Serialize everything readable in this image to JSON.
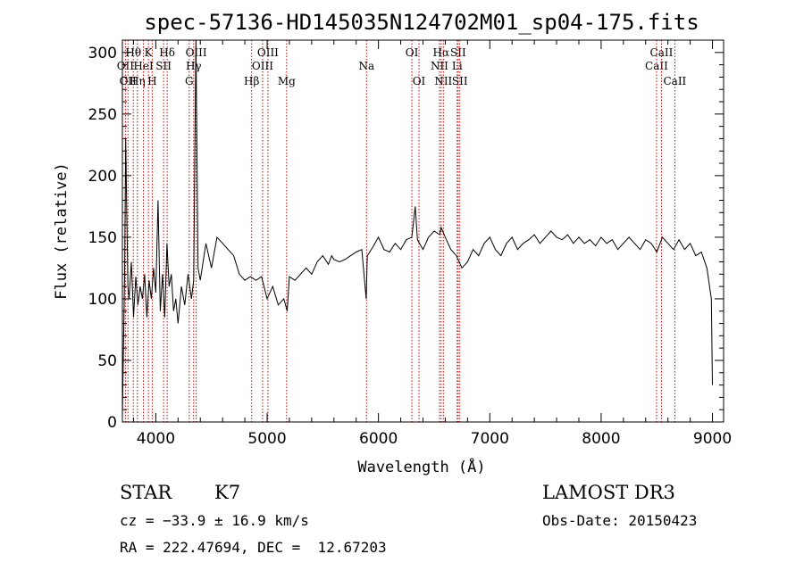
{
  "chart_data": {
    "type": "line",
    "title": "spec-57136-HD145035N124702M01_sp04-175.fits",
    "xlabel": "Wavelength (Å)",
    "ylabel": "Flux (relative)",
    "xlim": [
      3700,
      9100
    ],
    "ylim": [
      0,
      310
    ],
    "xticks": [
      4000,
      5000,
      6000,
      7000,
      8000,
      9000
    ],
    "yticks": [
      0,
      50,
      100,
      150,
      200,
      250,
      300
    ],
    "grid": false,
    "line_color": "#000000",
    "marker_color": "#cc0000",
    "series": [
      {
        "x": [
          3700,
          3710,
          3720,
          3730,
          3740,
          3750,
          3760,
          3780,
          3800,
          3820,
          3840,
          3860,
          3880,
          3900,
          3920,
          3940,
          3960,
          3980,
          4000,
          4020,
          4040,
          4060,
          4080,
          4100,
          4120,
          4140,
          4160,
          4180,
          4200,
          4230,
          4260,
          4290,
          4320,
          4340,
          4360,
          4380,
          4400,
          4450,
          4500,
          4550,
          4600,
          4650,
          4700,
          4750,
          4800,
          4850,
          4900,
          4950,
          5000,
          5050,
          5100,
          5150,
          5180,
          5200,
          5250,
          5300,
          5350,
          5400,
          5450,
          5500,
          5550,
          5580,
          5600,
          5650,
          5700,
          5750,
          5800,
          5850,
          5890,
          5900,
          5950,
          6000,
          6050,
          6100,
          6150,
          6200,
          6250,
          6300,
          6330,
          6350,
          6400,
          6450,
          6500,
          6550,
          6563,
          6600,
          6650,
          6700,
          6750,
          6800,
          6850,
          6900,
          6950,
          7000,
          7050,
          7100,
          7150,
          7200,
          7250,
          7300,
          7350,
          7400,
          7450,
          7500,
          7550,
          7600,
          7650,
          7700,
          7750,
          7800,
          7850,
          7900,
          7950,
          8000,
          8050,
          8100,
          8150,
          8200,
          8250,
          8300,
          8350,
          8400,
          8450,
          8500,
          8550,
          8600,
          8650,
          8700,
          8750,
          8800,
          8850,
          8900,
          8950,
          8990,
          9000
        ],
        "values": [
          5,
          60,
          120,
          230,
          165,
          110,
          100,
          130,
          85,
          118,
          95,
          110,
          100,
          120,
          85,
          115,
          100,
          125,
          105,
          180,
          90,
          120,
          85,
          145,
          110,
          120,
          90,
          100,
          80,
          110,
          95,
          120,
          100,
          115,
          310,
          125,
          115,
          145,
          125,
          150,
          145,
          140,
          135,
          120,
          115,
          118,
          115,
          118,
          100,
          110,
          95,
          100,
          90,
          118,
          115,
          120,
          125,
          120,
          130,
          135,
          128,
          135,
          132,
          130,
          132,
          135,
          138,
          140,
          100,
          135,
          142,
          150,
          140,
          138,
          145,
          140,
          148,
          150,
          175,
          148,
          140,
          150,
          155,
          152,
          158,
          150,
          140,
          135,
          125,
          130,
          140,
          135,
          145,
          150,
          140,
          135,
          145,
          150,
          140,
          145,
          148,
          152,
          145,
          150,
          155,
          150,
          148,
          152,
          145,
          150,
          145,
          148,
          143,
          150,
          145,
          148,
          140,
          145,
          150,
          145,
          140,
          148,
          145,
          138,
          150,
          145,
          140,
          148,
          140,
          145,
          135,
          138,
          125,
          100,
          30
        ]
      }
    ],
    "markers": [
      {
        "x": 3727,
        "label": "OII",
        "row": 2
      },
      {
        "x": 3750,
        "label": "OII",
        "row": 3
      },
      {
        "x": 3798,
        "label": "Hθ",
        "row": 1
      },
      {
        "x": 3835,
        "label": "Hη",
        "row": 3
      },
      {
        "x": 3889,
        "label": "HeI",
        "row": 2
      },
      {
        "x": 3934,
        "label": "K",
        "row": 1
      },
      {
        "x": 3968,
        "label": "H",
        "row": 3
      },
      {
        "x": 4070,
        "label": "SII",
        "row": 2
      },
      {
        "x": 4102,
        "label": "Hδ",
        "row": 1
      },
      {
        "x": 4300,
        "label": "G",
        "row": 3
      },
      {
        "x": 4340,
        "label": "Hγ",
        "row": 2
      },
      {
        "x": 4363,
        "label": "OIII",
        "row": 1
      },
      {
        "x": 4861,
        "label": "Hβ",
        "row": 3
      },
      {
        "x": 4959,
        "label": "OIII",
        "row": 2
      },
      {
        "x": 5007,
        "label": "OIII",
        "row": 1
      },
      {
        "x": 5175,
        "label": "Mg",
        "row": 3
      },
      {
        "x": 5893,
        "label": "Na",
        "row": 2
      },
      {
        "x": 6300,
        "label": "OI",
        "row": 1
      },
      {
        "x": 6364,
        "label": "OI",
        "row": 3
      },
      {
        "x": 6548,
        "label": "NII",
        "row": 2
      },
      {
        "x": 6563,
        "label": "Hα",
        "row": 1
      },
      {
        "x": 6583,
        "label": "NII",
        "row": 3
      },
      {
        "x": 6707,
        "label": "Li",
        "row": 2
      },
      {
        "x": 6716,
        "label": "SII",
        "row": 1
      },
      {
        "x": 6731,
        "label": "SII",
        "row": 3
      },
      {
        "x": 8498,
        "label": "CaII",
        "row": 2
      },
      {
        "x": 8542,
        "label": "CaII",
        "row": 1
      },
      {
        "x": 8662,
        "label": "CaII",
        "row": 3
      }
    ]
  },
  "info": {
    "class": "STAR",
    "subclass": "K7",
    "survey": "LAMOST DR3",
    "cz": "cz = −33.9 ± 16.9 km/s",
    "obs_date": "Obs-Date: 20150423",
    "coords": "RA = 222.47694, DEC =  12.67203"
  }
}
